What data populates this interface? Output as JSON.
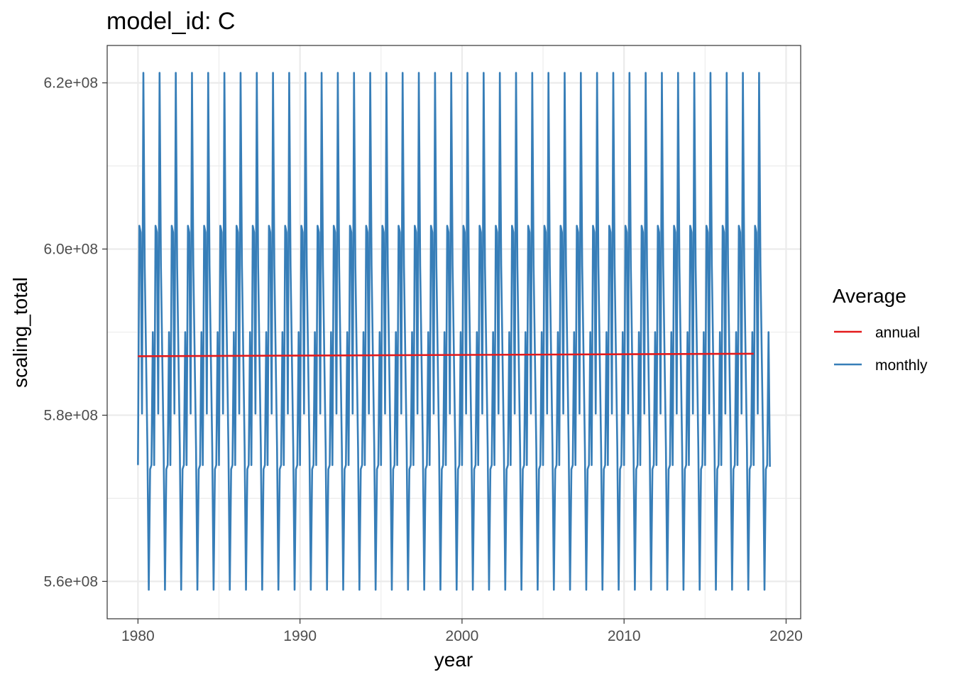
{
  "chart_data": {
    "type": "line",
    "title": "model_id: C",
    "xlabel": "year",
    "ylabel": "scaling_total",
    "xlim": [
      1978.1,
      2020.9
    ],
    "ylim": [
      555500000,
      624500000
    ],
    "x_ticks": [
      1980,
      1990,
      2000,
      2010,
      2020
    ],
    "x_tick_labels": [
      "1980",
      "1990",
      "2000",
      "2010",
      "2020"
    ],
    "y_ticks": [
      560000000,
      580000000,
      600000000,
      620000000
    ],
    "y_tick_labels": [
      "5.6e+08",
      "5.8e+08",
      "6.0e+08",
      "6.2e+08"
    ],
    "grid": true,
    "legend": {
      "title": "Average",
      "position": "right",
      "entries": [
        "annual",
        "monthly"
      ]
    },
    "series": [
      {
        "name": "annual",
        "color": "#e41a1c",
        "x": [
          1980,
          2018
        ],
        "values": [
          587100000,
          587400000
        ]
      },
      {
        "name": "monthly",
        "color": "#377eb8",
        "x_start": 1980,
        "x_end": 2019,
        "step_years": 0.0833333,
        "seasonal_cycle": [
          574000000,
          602800000,
          602000000,
          580200000,
          621200000,
          598000000,
          587000000,
          576000000,
          559000000,
          573500000,
          574000000,
          590000000
        ],
        "note_last_point": 573800000
      }
    ]
  }
}
